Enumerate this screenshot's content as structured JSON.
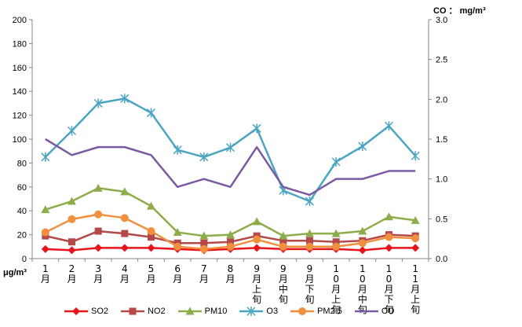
{
  "chart_data": {
    "type": "line",
    "categories": [
      "1月",
      "2月",
      "3月",
      "4月",
      "5月",
      "6月",
      "7月",
      "8月",
      "9月上旬",
      "9月中旬",
      "9月下旬",
      "10月上旬",
      "10月中旬",
      "10月下旬",
      "11月上旬"
    ],
    "y_left": {
      "unit_label": "μg/m³",
      "range": [
        0,
        200
      ],
      "ticks": [
        0,
        20,
        40,
        60,
        80,
        100,
        120,
        140,
        160,
        180,
        200
      ]
    },
    "y_right": {
      "unit_label": "CO ： mg/m³",
      "range": [
        0,
        3.0
      ],
      "ticks": [
        "0.0",
        "0.5",
        "1.0",
        "1.5",
        "2.0",
        "2.5",
        "3.0"
      ]
    },
    "series": [
      {
        "name": "SO2",
        "axis": "left",
        "color": "#e8141c",
        "marker": "diamond",
        "values": [
          8,
          7,
          9,
          9,
          9,
          8,
          7,
          8,
          9,
          8,
          8,
          8,
          7,
          9,
          9
        ]
      },
      {
        "name": "NO2",
        "axis": "left",
        "color": "#b5494a",
        "marker": "square",
        "values": [
          19,
          14,
          23,
          21,
          18,
          13,
          13,
          14,
          19,
          15,
          15,
          14,
          15,
          20,
          19
        ]
      },
      {
        "name": "PM10",
        "axis": "left",
        "color": "#8dad4a",
        "marker": "triangle",
        "values": [
          41,
          48,
          59,
          56,
          44,
          22,
          19,
          20,
          31,
          19,
          21,
          21,
          23,
          35,
          32
        ]
      },
      {
        "name": "O3",
        "axis": "left",
        "color": "#4aa5c3",
        "marker": "star",
        "values": [
          85,
          107,
          130,
          134,
          122,
          91,
          85,
          93,
          109,
          57,
          48,
          81,
          94,
          111,
          86
        ]
      },
      {
        "name": "PM2.5",
        "axis": "left",
        "color": "#f0903e",
        "marker": "circle",
        "values": [
          22,
          33,
          37,
          34,
          23,
          10,
          8,
          10,
          16,
          10,
          10,
          10,
          13,
          18,
          17
        ]
      },
      {
        "name": "CO",
        "axis": "right",
        "color": "#7b5aa3",
        "marker": "none",
        "values": [
          1.5,
          1.3,
          1.4,
          1.4,
          1.3,
          0.9,
          1.0,
          0.9,
          1.4,
          0.9,
          0.8,
          1.0,
          1.0,
          1.1,
          1.1
        ]
      }
    ],
    "grid": false,
    "legend_position": "bottom"
  }
}
